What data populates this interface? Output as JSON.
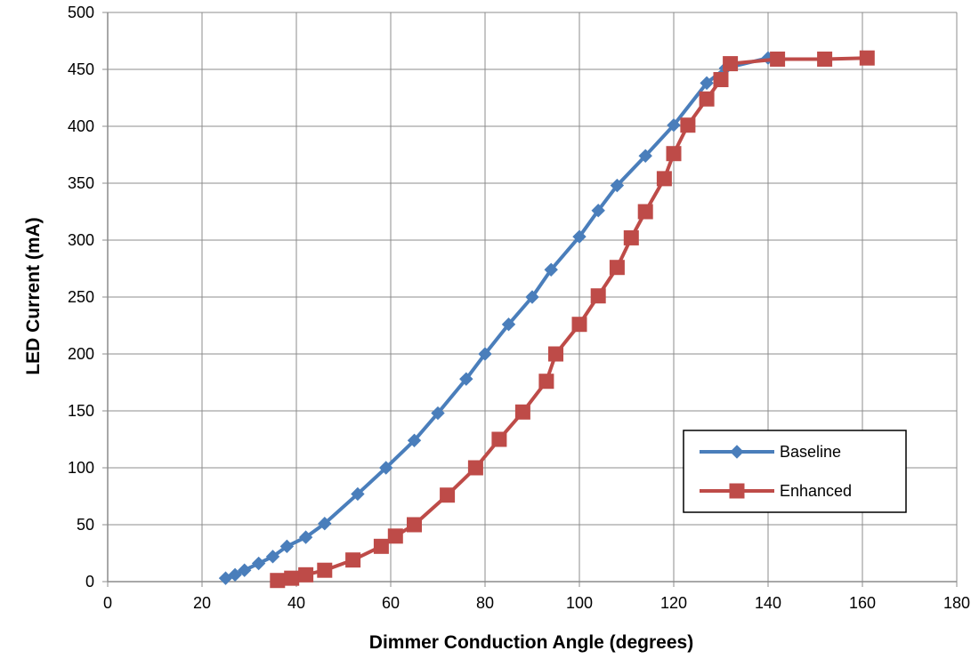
{
  "chart_data": {
    "type": "line",
    "title": "",
    "xlabel": "Dimmer Conduction Angle (degrees)",
    "ylabel": "LED Current (mA)",
    "xlim": [
      0,
      180
    ],
    "ylim": [
      0,
      500
    ],
    "x_ticks": [
      0,
      20,
      40,
      60,
      80,
      100,
      120,
      140,
      160,
      180
    ],
    "y_ticks": [
      0,
      50,
      100,
      150,
      200,
      250,
      300,
      350,
      400,
      450,
      500
    ],
    "grid": true,
    "legend": {
      "position": "bottom-right-inside",
      "border": true
    },
    "series": [
      {
        "name": "Baseline",
        "color": "#4a7ebb",
        "marker": "diamond",
        "x": [
          25,
          27,
          29,
          32,
          35,
          38,
          42,
          46,
          53,
          59,
          65,
          70,
          76,
          80,
          85,
          90,
          94,
          100,
          104,
          108,
          114,
          120,
          127,
          131,
          140
        ],
        "y": [
          3,
          6,
          10,
          16,
          22,
          31,
          39,
          51,
          77,
          100,
          124,
          148,
          178,
          200,
          226,
          250,
          274,
          303,
          326,
          348,
          374,
          401,
          438,
          451,
          460
        ]
      },
      {
        "name": "Enhanced",
        "color": "#be4b48",
        "marker": "square",
        "x": [
          36,
          39,
          42,
          46,
          52,
          58,
          61,
          65,
          72,
          78,
          83,
          88,
          93,
          95,
          100,
          104,
          108,
          111,
          114,
          118,
          120,
          123,
          127,
          130,
          132,
          142,
          152,
          161
        ],
        "y": [
          1,
          3,
          6,
          10,
          19,
          31,
          40,
          50,
          76,
          100,
          125,
          149,
          176,
          200,
          226,
          251,
          276,
          302,
          325,
          354,
          376,
          401,
          424,
          441,
          455,
          459,
          459,
          460
        ]
      }
    ]
  }
}
